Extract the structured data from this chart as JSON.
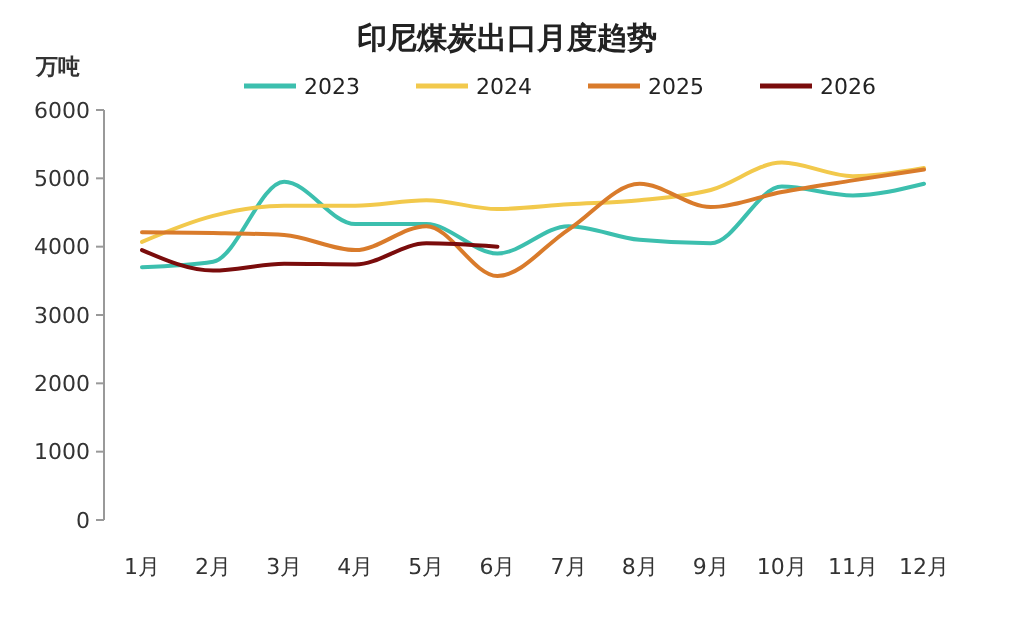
{
  "chart_data": {
    "type": "line",
    "title": "印尼煤炭出口月度趋势",
    "ylabel": "万吨",
    "categories": [
      "1月",
      "2月",
      "3月",
      "4月",
      "5月",
      "6月",
      "7月",
      "8月",
      "9月",
      "10月",
      "11月",
      "12月"
    ],
    "series": [
      {
        "name": "2023",
        "color": "#3cbfae",
        "values": [
          3700,
          3780,
          4950,
          4330,
          4330,
          3900,
          4300,
          4100,
          4050,
          4880,
          4750,
          4920
        ]
      },
      {
        "name": "2024",
        "color": "#f2c94c",
        "values": [
          4070,
          4450,
          4600,
          4600,
          4680,
          4550,
          4620,
          4680,
          4830,
          5230,
          5030,
          5150
        ]
      },
      {
        "name": "2025",
        "color": "#d97b2b",
        "values": [
          4210,
          4200,
          4170,
          3950,
          4300,
          3570,
          4250,
          4920,
          4580,
          4800,
          4970,
          5130
        ]
      },
      {
        "name": "2026",
        "color": "#7a0c0c",
        "values": [
          3950,
          3650,
          3750,
          3740,
          4050,
          4000,
          null,
          null,
          null,
          null,
          null,
          null
        ]
      }
    ],
    "ylim": [
      0,
      6000
    ],
    "yticks": [
      0,
      1000,
      2000,
      3000,
      4000,
      5000,
      6000
    ],
    "legend": "top",
    "marker": "none",
    "line_style": "solid"
  }
}
